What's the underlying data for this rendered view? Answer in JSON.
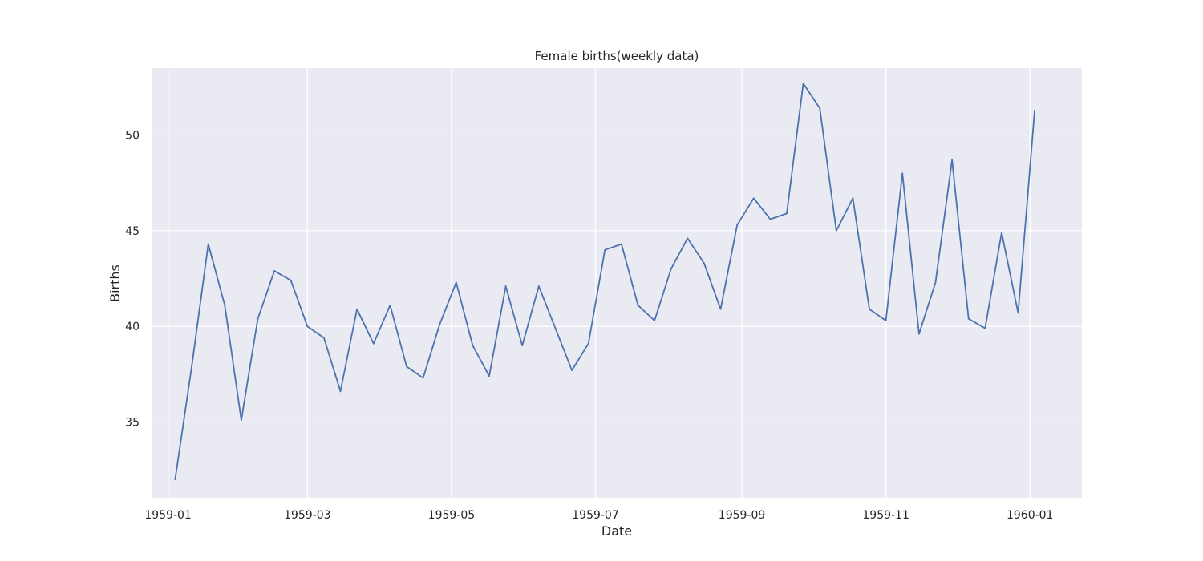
{
  "chart_data": {
    "type": "line",
    "title": "Female births(weekly data)",
    "xlabel": "Date",
    "ylabel": "Births",
    "x_axis_type": "date",
    "xlim": [
      "1958-12-25",
      "1960-01-23"
    ],
    "ylim": [
      31.0,
      53.5
    ],
    "grid": true,
    "legend": "none",
    "colors": {
      "line": "#4c72b0",
      "plot_background": "#eaeaf2",
      "grid": "#ffffff"
    },
    "x_ticks": [
      {
        "value": "1959-01-01",
        "label": "1959-01"
      },
      {
        "value": "1959-03-01",
        "label": "1959-03"
      },
      {
        "value": "1959-05-01",
        "label": "1959-05"
      },
      {
        "value": "1959-07-01",
        "label": "1959-07"
      },
      {
        "value": "1959-09-01",
        "label": "1959-09"
      },
      {
        "value": "1959-11-01",
        "label": "1959-11"
      },
      {
        "value": "1960-01-01",
        "label": "1960-01"
      }
    ],
    "y_ticks": [
      35,
      40,
      45,
      50
    ],
    "x": [
      "1959-01-04",
      "1959-01-11",
      "1959-01-18",
      "1959-01-25",
      "1959-02-01",
      "1959-02-08",
      "1959-02-15",
      "1959-02-22",
      "1959-03-01",
      "1959-03-08",
      "1959-03-15",
      "1959-03-22",
      "1959-03-29",
      "1959-04-05",
      "1959-04-12",
      "1959-04-19",
      "1959-04-26",
      "1959-05-03",
      "1959-05-10",
      "1959-05-17",
      "1959-05-24",
      "1959-05-31",
      "1959-06-07",
      "1959-06-14",
      "1959-06-21",
      "1959-06-28",
      "1959-07-05",
      "1959-07-12",
      "1959-07-19",
      "1959-07-26",
      "1959-08-02",
      "1959-08-09",
      "1959-08-16",
      "1959-08-23",
      "1959-08-30",
      "1959-09-06",
      "1959-09-13",
      "1959-09-20",
      "1959-09-27",
      "1959-10-04",
      "1959-10-11",
      "1959-10-18",
      "1959-10-25",
      "1959-11-01",
      "1959-11-08",
      "1959-11-15",
      "1959-11-22",
      "1959-11-29",
      "1959-12-06",
      "1959-12-13",
      "1959-12-20",
      "1959-12-27",
      "1960-01-03"
    ],
    "series": [
      {
        "values": [
          32.0,
          37.9,
          44.3,
          41.1,
          35.1,
          40.4,
          42.9,
          42.4,
          40.0,
          39.4,
          36.6,
          40.9,
          39.1,
          41.1,
          37.9,
          37.3,
          40.1,
          42.3,
          39.0,
          37.4,
          42.1,
          39.0,
          42.1,
          39.9,
          37.7,
          39.1,
          44.0,
          44.3,
          41.1,
          40.3,
          43.0,
          44.6,
          43.3,
          40.9,
          45.3,
          46.7,
          45.6,
          45.9,
          52.7,
          51.4,
          45.0,
          46.7,
          40.9,
          40.3,
          48.0,
          39.6,
          42.3,
          48.7,
          40.4,
          39.9,
          44.9,
          40.7,
          51.3
        ]
      }
    ]
  }
}
